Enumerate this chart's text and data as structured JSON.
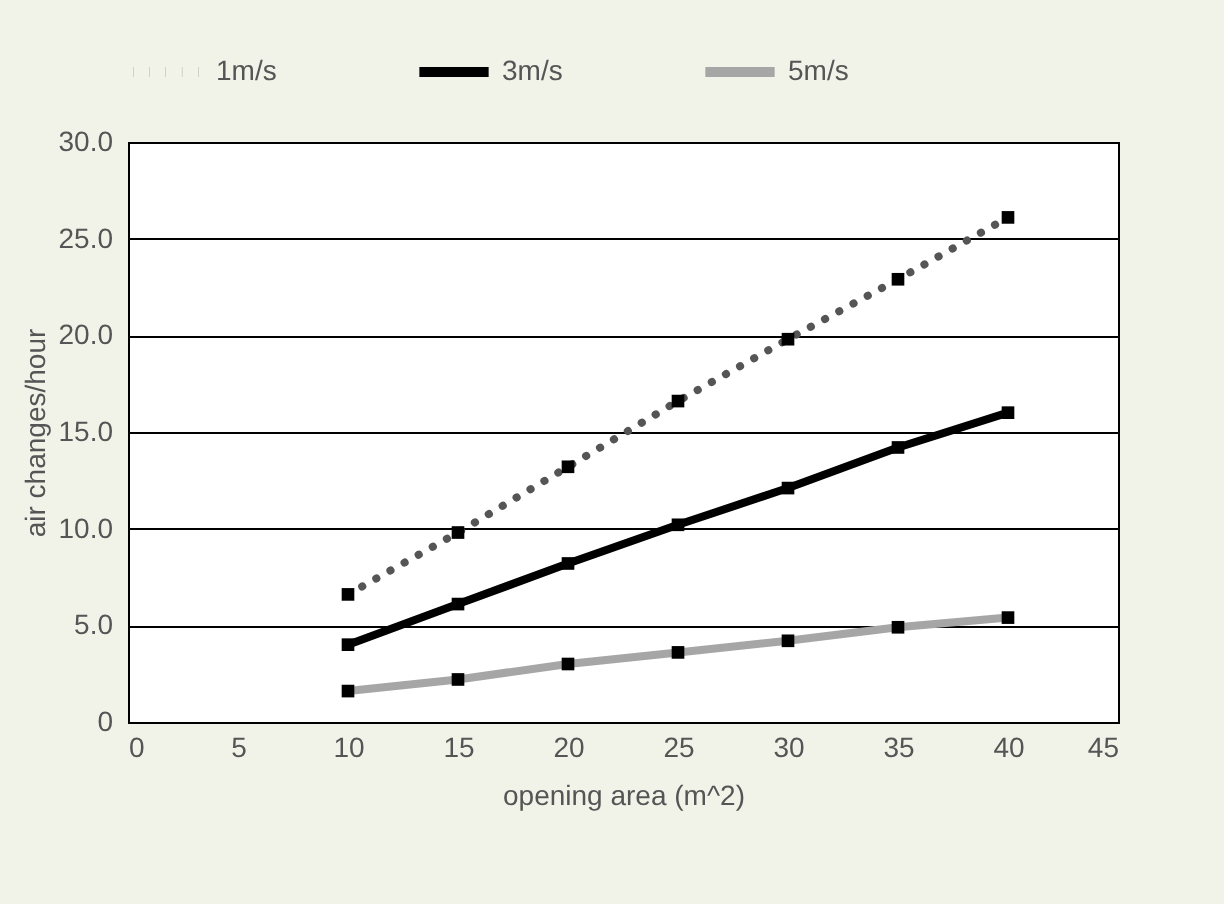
{
  "chart_data": {
    "type": "line",
    "xlabel": "opening area (m^2)",
    "ylabel": "air changes/hour",
    "x": [
      10,
      15,
      20,
      25,
      30,
      35,
      40
    ],
    "series": [
      {
        "name": "1m/s",
        "color": "#555555",
        "line_style": "dotted",
        "values": [
          6.6,
          9.8,
          13.2,
          16.6,
          19.8,
          22.9,
          26.1
        ]
      },
      {
        "name": "3m/s",
        "color": "#000000",
        "line_style": "solid",
        "values": [
          4.0,
          6.1,
          8.2,
          10.2,
          12.1,
          14.2,
          16.0
        ]
      },
      {
        "name": "5m/s",
        "color": "#a6a6a6",
        "line_style": "solid",
        "values": [
          1.6,
          2.2,
          3.0,
          3.6,
          4.2,
          4.9,
          5.4
        ]
      }
    ],
    "xlim": [
      0,
      45
    ],
    "xticks": [
      0,
      5,
      10,
      15,
      20,
      25,
      30,
      35,
      40,
      45
    ],
    "ylim": [
      0,
      30
    ],
    "yticks": [
      {
        "value": 0,
        "label": "0"
      },
      {
        "value": 5,
        "label": "5.0"
      },
      {
        "value": 10,
        "label": "10.0"
      },
      {
        "value": 15,
        "label": "15.0"
      },
      {
        "value": 20,
        "label": "20.0"
      },
      {
        "value": 25,
        "label": "25.0"
      },
      {
        "value": 30,
        "label": "30.0"
      }
    ],
    "grid": "y",
    "legend": "top",
    "marker": "square"
  }
}
